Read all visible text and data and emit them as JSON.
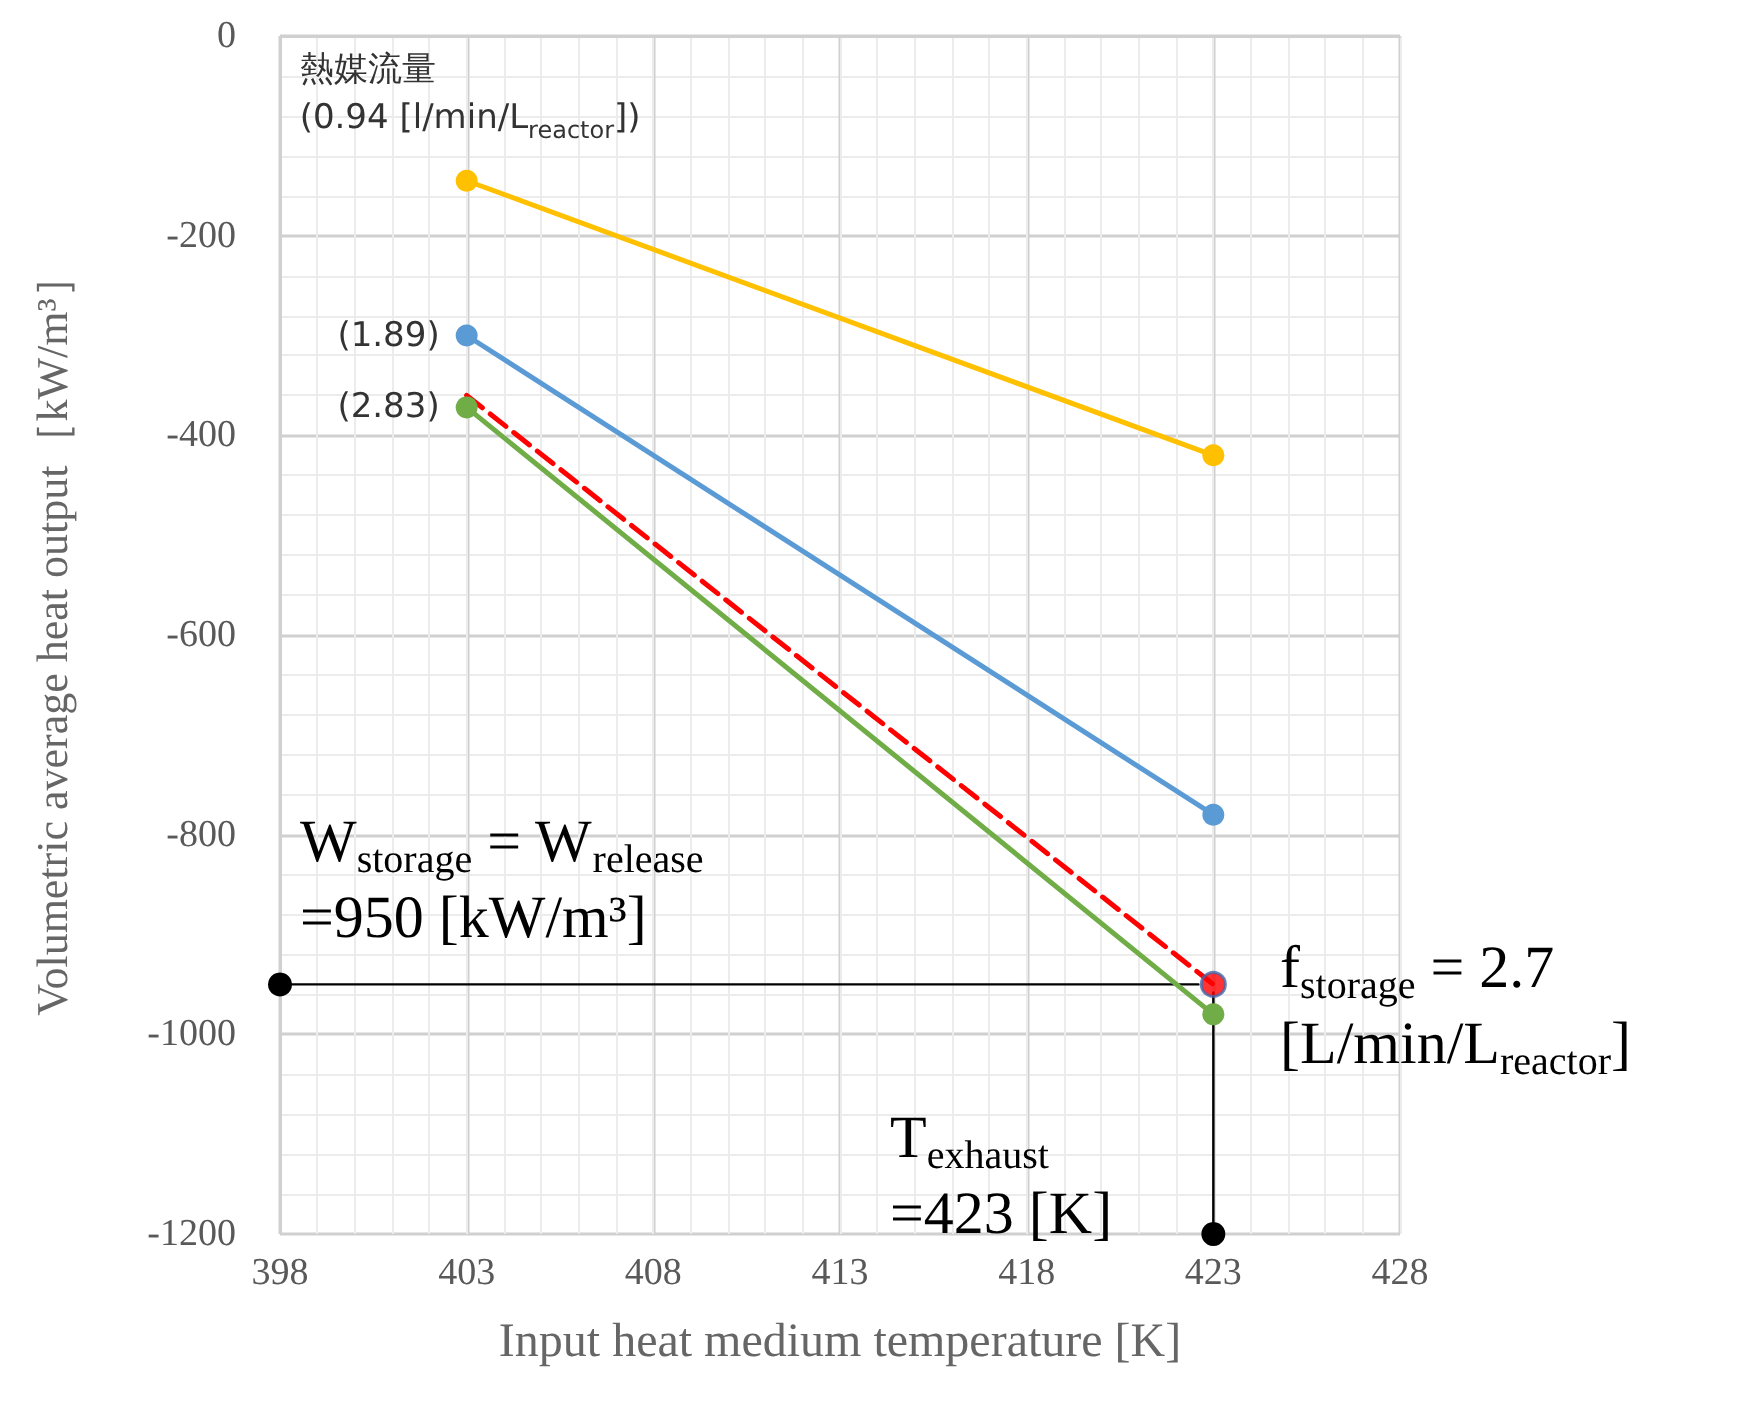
{
  "chart_data": {
    "type": "line",
    "xlabel": "Input heat medium temperature [K]",
    "ylabel": "Volumetric average heat output［kW/m³］",
    "x": [
      403,
      423
    ],
    "series": [
      {
        "name": "熱媒流量\n(0.94 [l/min/L$_{reactor}$])",
        "color": "#ffc000",
        "values": [
          -145,
          -420
        ],
        "marker": "circle"
      },
      {
        "name": "(1.89)",
        "color": "#5b9bd5",
        "values": [
          -300,
          -780
        ],
        "marker": "circle"
      },
      {
        "name": "(2.83)",
        "color": "#70ad47",
        "values": [
          -372,
          -980
        ],
        "marker": "circle"
      },
      {
        "color": "#ff0000",
        "values": [
          -360,
          -950
        ],
        "marker": "none",
        "line_style": "dashed"
      },
      {
        "type": "scatter",
        "color": "#ff0000",
        "x": [
          423
        ],
        "values": [
          -950
        ],
        "marker": "circle"
      },
      {
        "color": "#000000",
        "x": [
          398,
          422.6
        ],
        "values": [
          -950,
          -950
        ],
        "marker": "circle"
      },
      {
        "color": "#000000",
        "x": [
          423,
          423
        ],
        "values": [
          -1200,
          -958
        ],
        "marker": "circle"
      }
    ],
    "xlim": [
      398,
      428
    ],
    "xticks": [
      398,
      403,
      408,
      413,
      418,
      423,
      428
    ],
    "ylim": [
      -1200,
      0
    ],
    "yticks": [
      -1200,
      -1000,
      -800,
      -600,
      -400,
      -200,
      0
    ],
    "grid": true,
    "line_style": "solid",
    "annotations": [
      "W$_{storage}$ = W$_{release}$\n=950 [kW/m³]",
      "f$_{storage}$ = 2.7\n[L/min/L$_{reactor}$]",
      "T$_{exhaust}$\n=423 [K]"
    ]
  }
}
